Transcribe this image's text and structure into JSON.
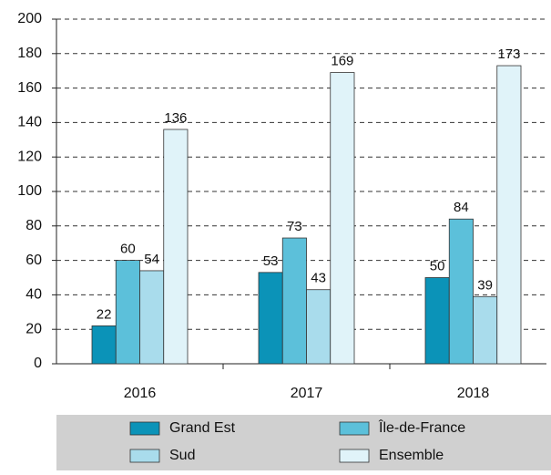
{
  "chart_data": {
    "type": "bar",
    "categories": [
      "2016",
      "2017",
      "2018"
    ],
    "series": [
      {
        "name": "Grand Est",
        "color": "#0b93b8",
        "values": [
          22,
          53,
          50
        ]
      },
      {
        "name": "Île-de-France",
        "color": "#5cc0da",
        "values": [
          60,
          73,
          84
        ]
      },
      {
        "name": "Sud",
        "color": "#a9dcec",
        "values": [
          54,
          43,
          39
        ]
      },
      {
        "name": "Ensemble",
        "color": "#e0f3f9",
        "values": [
          136,
          169,
          173
        ]
      }
    ],
    "ylim": [
      0,
      200
    ],
    "yticks": [
      0,
      20,
      40,
      60,
      80,
      100,
      120,
      140,
      160,
      180,
      200
    ],
    "grid": true,
    "legend": "bottom"
  }
}
